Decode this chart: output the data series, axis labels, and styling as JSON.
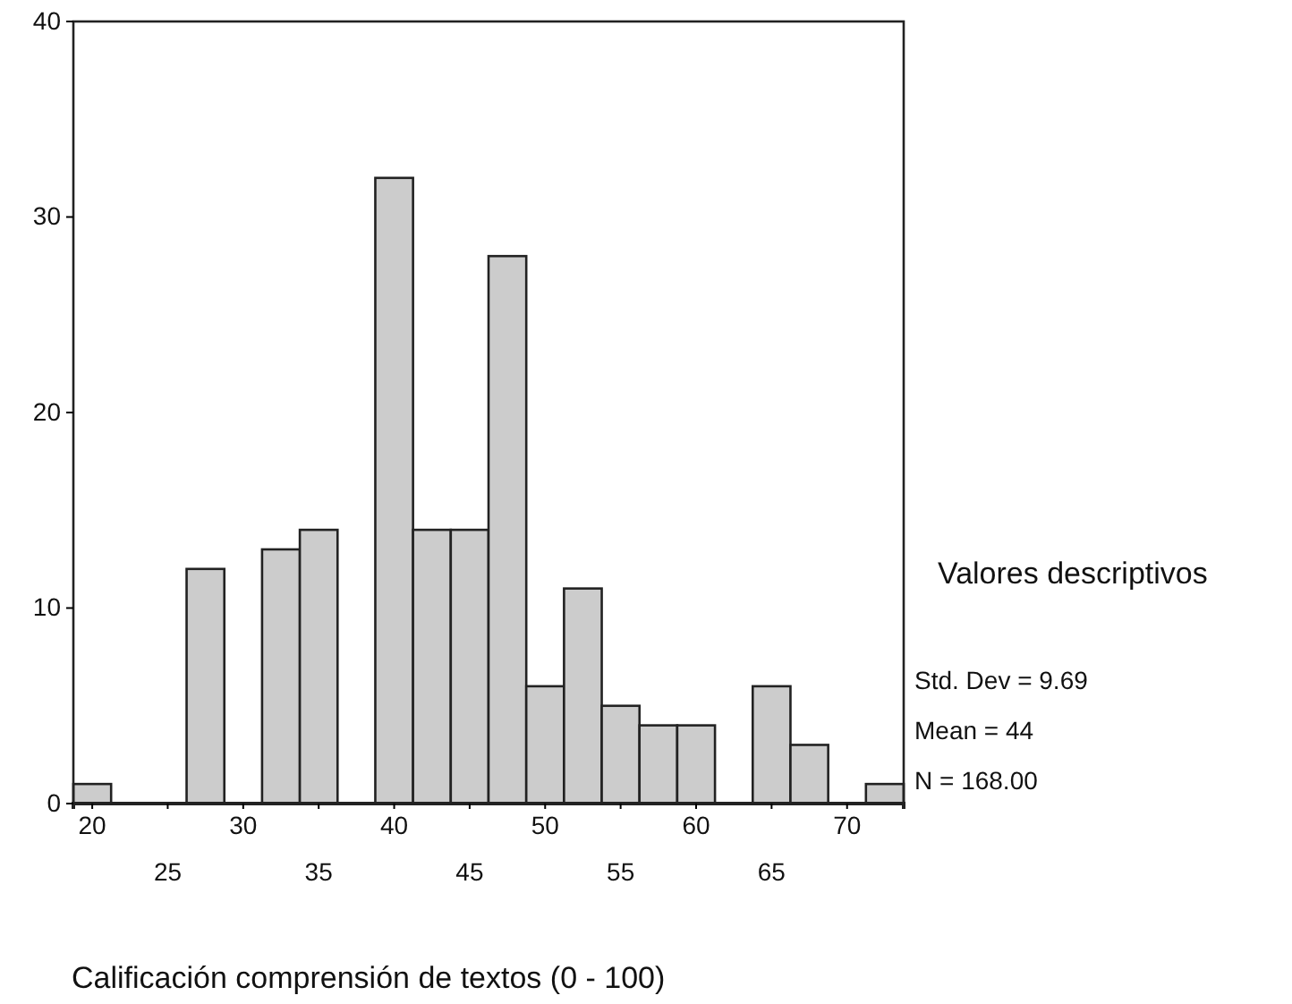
{
  "chart_data": {
    "type": "histogram",
    "bins": [
      18.75,
      21.25,
      23.75,
      26.25,
      28.75,
      31.25,
      33.75,
      36.25,
      38.75,
      41.25,
      43.75,
      46.25,
      48.75,
      51.25,
      53.75,
      56.25,
      58.75,
      61.25,
      63.75,
      66.25,
      68.75,
      71.25,
      73.75
    ],
    "values": [
      1,
      0,
      0,
      12,
      0,
      13,
      14,
      0,
      32,
      14,
      14,
      28,
      6,
      11,
      5,
      4,
      4,
      0,
      6,
      3,
      0,
      1
    ],
    "color": "#cccccc",
    "xlim": [
      18.75,
      73.75
    ],
    "xticks": [
      20,
      {
        "value": 25,
        "label": null
      },
      30,
      {
        "value": 35,
        "label": null
      },
      40,
      {
        "value": 45,
        "label": null
      },
      50,
      {
        "value": 55,
        "label": null
      },
      60,
      {
        "value": 65,
        "label": null
      },
      70
    ],
    "x2lim": [
      18.75,
      73.75
    ],
    "x2ticks": [
      25,
      35,
      45,
      55,
      65
    ],
    "ylim": [
      0,
      40
    ],
    "yticks": [
      0,
      10,
      20,
      30,
      40
    ],
    "xlabel": "Calificación comprensión de textos (0 - 100)",
    "legend_title": "Valores descriptivos",
    "annotations": [
      "Std. Dev = 9.69",
      "Mean = 44",
      "N = 168.00"
    ],
    "grid": false
  }
}
